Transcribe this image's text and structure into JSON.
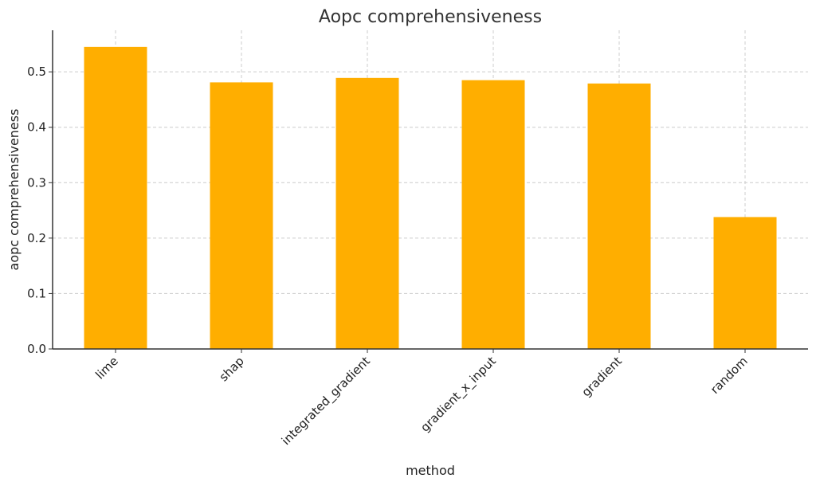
{
  "chart_data": {
    "type": "bar",
    "title": "Aopc comprehensiveness",
    "xlabel": "method",
    "ylabel": "aopc comprehensiveness",
    "categories": [
      "lime",
      "shap",
      "integrated_gradient",
      "gradient_x_input",
      "gradient",
      "random"
    ],
    "values": [
      0.545,
      0.481,
      0.489,
      0.485,
      0.479,
      0.238
    ],
    "ylim": [
      0,
      0.575
    ],
    "yticks": [
      0.0,
      0.1,
      0.2,
      0.3,
      0.4,
      0.5
    ],
    "ytick_labels": [
      "0.0",
      "0.1",
      "0.2",
      "0.3",
      "0.4",
      "0.5"
    ],
    "grid": true,
    "bar_color": "#ffae00"
  }
}
